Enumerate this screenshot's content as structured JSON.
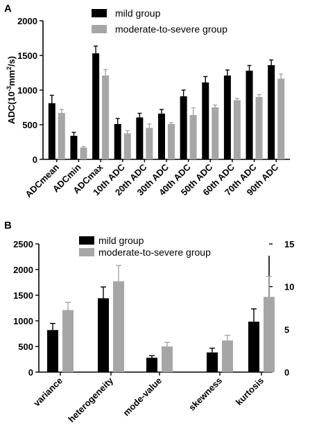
{
  "panels": [
    {
      "label": "A",
      "chart_data": {
        "type": "bar",
        "ylabel": "ADC(10",
        "ylabel_sup1": "-3",
        "ylabel_mid": "mm",
        "ylabel_sup2": "2",
        "ylabel_end": "/s)",
        "ylim": [
          0,
          2000
        ],
        "yticks": [
          "0",
          "500",
          "1000",
          "1500",
          "2000"
        ],
        "categories": [
          "ADCmean",
          "ADCmin",
          "ADCmax",
          "10th ADC",
          "20th ADC",
          "30th ADC",
          "40th ADC",
          "50th ADC",
          "60th ADC",
          "70th ADC",
          "90th ADC"
        ],
        "series": [
          {
            "name": "mild group",
            "color": "#000000",
            "values": [
              810,
              340,
              1530,
              510,
              605,
              660,
              910,
              1110,
              1210,
              1280,
              1360
            ],
            "errors": [
              115,
              50,
              105,
              80,
              60,
              60,
              90,
              85,
              80,
              75,
              75
            ]
          },
          {
            "name": "moderate-to-severe group",
            "color": "#a6a6a6",
            "values": [
              670,
              170,
              1210,
              375,
              455,
              510,
              640,
              750,
              855,
              900,
              1165
            ],
            "errors": [
              50,
              15,
              85,
              40,
              55,
              20,
              105,
              35,
              25,
              35,
              65
            ]
          }
        ]
      }
    },
    {
      "label": "B",
      "chart_data": {
        "type": "bar",
        "ylim": [
          0,
          2500
        ],
        "yticks": [
          "0",
          "500",
          "1000",
          "1500",
          "2000",
          "2500"
        ],
        "y2lim": [
          0,
          15
        ],
        "y2ticks": [
          "0",
          "5",
          "10",
          "15"
        ],
        "categories": [
          "variance",
          "heterogeneity",
          "mode-value",
          "skewness",
          "kurtosis"
        ],
        "axis": [
          "left",
          "left",
          "left",
          "right",
          "right"
        ],
        "series": [
          {
            "name": "mild group",
            "color": "#000000",
            "values": [
              820,
              1440,
              280,
              2.3,
              5.9
            ],
            "errors": [
              130,
              220,
              40,
              0.5,
              1.5
            ]
          },
          {
            "name": "moderate-to-severe group",
            "color": "#a6a6a6",
            "values": [
              1210,
              1770,
              500,
              3.7,
              8.8
            ],
            "errors": [
              150,
              310,
              80,
              0.6,
              2.4
            ]
          }
        ]
      }
    }
  ]
}
